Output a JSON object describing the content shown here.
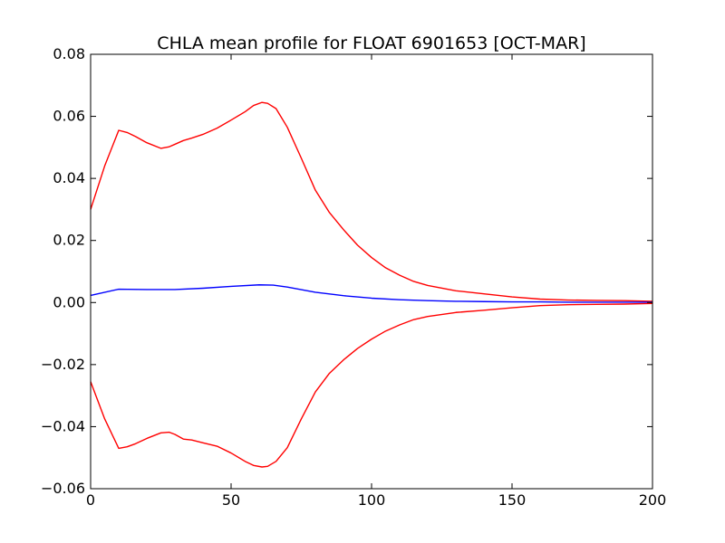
{
  "chart_data": {
    "type": "line",
    "title": "CHLA mean profile for FLOAT 6901653 [OCT-MAR]",
    "xlabel": "",
    "ylabel": "",
    "xlim": [
      0,
      200
    ],
    "ylim": [
      -0.06,
      0.08
    ],
    "x_ticks": [
      0,
      50,
      100,
      150,
      200
    ],
    "x_tick_labels": [
      "0",
      "50",
      "100",
      "150",
      "200"
    ],
    "y_ticks": [
      -0.06,
      -0.04,
      -0.02,
      0.0,
      0.02,
      0.04,
      0.06,
      0.08
    ],
    "y_tick_labels": [
      "−0.06",
      "−0.04",
      "−0.02",
      "0.00",
      "0.02",
      "0.04",
      "0.06",
      "0.08"
    ],
    "grid": false,
    "legend": "none",
    "series": [
      {
        "color": "#ff0000",
        "x": [
          0,
          5,
          10,
          13,
          16,
          20,
          25,
          28,
          30,
          33,
          36,
          40,
          45,
          50,
          55,
          58,
          61,
          63,
          66,
          70,
          75,
          80,
          85,
          90,
          95,
          100,
          105,
          110,
          115,
          120,
          130,
          140,
          150,
          160,
          170,
          180,
          190,
          200
        ],
        "y": [
          0.03,
          0.044,
          0.0555,
          0.0548,
          0.0535,
          0.0515,
          0.0497,
          0.0502,
          0.051,
          0.0522,
          0.053,
          0.0542,
          0.0562,
          0.0588,
          0.0615,
          0.0635,
          0.0645,
          0.0642,
          0.0625,
          0.0565,
          0.0465,
          0.0362,
          0.029,
          0.0235,
          0.0185,
          0.0145,
          0.0112,
          0.0088,
          0.0068,
          0.0055,
          0.0038,
          0.0028,
          0.0018,
          0.0011,
          0.0008,
          0.0007,
          0.0006,
          0.0004
        ]
      },
      {
        "color": "#0000ff",
        "x": [
          0,
          10,
          20,
          30,
          40,
          50,
          60,
          65,
          70,
          80,
          90,
          100,
          110,
          120,
          130,
          140,
          150,
          160,
          170,
          180,
          190,
          200
        ],
        "y": [
          0.0023,
          0.0043,
          0.0042,
          0.0042,
          0.0046,
          0.0052,
          0.0057,
          0.0056,
          0.005,
          0.0033,
          0.0022,
          0.0014,
          0.0009,
          0.0006,
          0.0004,
          0.0003,
          0.0002,
          0.0002,
          0.0001,
          0.0001,
          0.0001,
          0.0001
        ]
      },
      {
        "color": "#ff0000",
        "x": [
          0,
          5,
          10,
          13,
          16,
          20,
          25,
          28,
          30,
          33,
          36,
          40,
          45,
          50,
          55,
          58,
          61,
          63,
          66,
          70,
          75,
          80,
          85,
          90,
          95,
          100,
          105,
          110,
          115,
          120,
          130,
          140,
          150,
          160,
          170,
          180,
          190,
          200
        ],
        "y": [
          -0.0255,
          -0.0375,
          -0.047,
          -0.0465,
          -0.0455,
          -0.0438,
          -0.042,
          -0.0418,
          -0.0425,
          -0.044,
          -0.0443,
          -0.0452,
          -0.0463,
          -0.0485,
          -0.0512,
          -0.0525,
          -0.053,
          -0.0528,
          -0.0512,
          -0.0468,
          -0.0375,
          -0.0288,
          -0.0228,
          -0.0185,
          -0.0148,
          -0.0118,
          -0.0092,
          -0.0072,
          -0.0055,
          -0.0045,
          -0.0032,
          -0.0025,
          -0.0017,
          -0.001,
          -0.0007,
          -0.0006,
          -0.0005,
          -0.0003
        ]
      }
    ]
  }
}
